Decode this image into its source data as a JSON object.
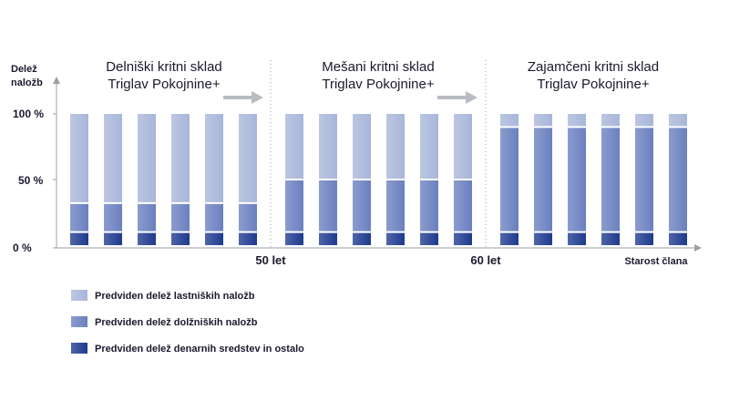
{
  "chart_data": {
    "type": "bar",
    "stacked": true,
    "ylabel_lines": [
      "Delež",
      "naložb"
    ],
    "xlabel": "Starost člana",
    "yticks": [
      {
        "value": 0,
        "label": "0 %"
      },
      {
        "value": 50,
        "label": "50 %"
      },
      {
        "value": 100,
        "label": "100 %"
      }
    ],
    "ylim": [
      0,
      100
    ],
    "grid": false,
    "legend_position": "bottom-left",
    "colors": {
      "equity": "#a8b6d9",
      "debt": "#6a80bf",
      "cash": "#1e3a8f",
      "axis": "#9aa0a6",
      "arrow": "#b8bcc2",
      "divider": "#9aa0a6"
    },
    "funds": [
      {
        "title_lines": [
          "Delniški kritni sklad",
          "Triglav Pokojnine+"
        ],
        "bars": 6,
        "cash": 10,
        "debt": 22,
        "equity": 68
      },
      {
        "title_lines": [
          "Mešani kritni sklad",
          "Triglav Pokojnine+"
        ],
        "bars": 6,
        "cash": 10,
        "debt": 40,
        "equity": 50
      },
      {
        "title_lines": [
          "Zajamčeni kritni sklad",
          "Triglav Pokojnine+"
        ],
        "bars": 6,
        "cash": 10,
        "debt": 80,
        "equity": 10
      }
    ],
    "age_markers": [
      "50 let",
      "60 let"
    ],
    "series": [
      {
        "key": "equity",
        "name": "Predviden delež lastniških naložb"
      },
      {
        "key": "debt",
        "name": "Predviden delež dolžniških naložb"
      },
      {
        "key": "cash",
        "name": "Predviden delež denarnih sredstev in ostalo"
      }
    ]
  }
}
